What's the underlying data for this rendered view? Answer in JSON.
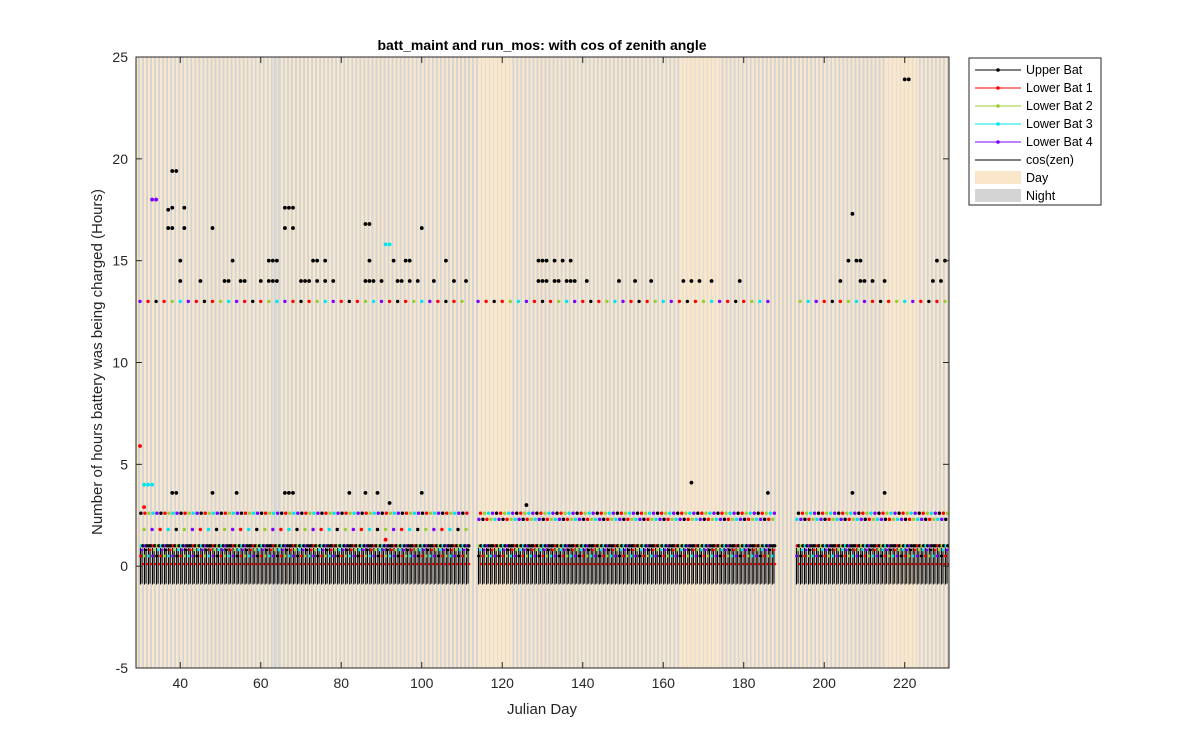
{
  "chart_data": {
    "type": "scatter",
    "title": "batt_maint and run_mos: with cos of zenith angle",
    "xlabel": "Julian Day",
    "ylabel": "Number of hours battery was being charged (Hours)",
    "xlim": [
      29,
      231
    ],
    "ylim": [
      -5,
      25
    ],
    "x_ticks": [
      40,
      60,
      80,
      100,
      120,
      140,
      160,
      180,
      200,
      220
    ],
    "y_ticks": [
      -5,
      0,
      5,
      10,
      15,
      20,
      25
    ],
    "grid": false,
    "legend_position": "outside-top-right",
    "background_bands": {
      "day_color": "#fae6c8",
      "night_color": "#d4d4d4",
      "mostly_day_day_ranges": [
        [
          114,
          122
        ],
        [
          164,
          174
        ],
        [
          215,
          223
        ]
      ],
      "mostly_night_day_ranges": [
        [
          63,
          65
        ]
      ]
    },
    "series": [
      {
        "name": "Upper Bat",
        "color": "#000000",
        "marker": "dot",
        "points": [
          [
            37,
            17.5
          ],
          [
            38,
            17.6
          ],
          [
            37,
            16.6
          ],
          [
            38,
            16.6
          ],
          [
            38,
            19.4
          ],
          [
            39,
            19.4
          ],
          [
            40,
            15
          ],
          [
            40,
            14
          ],
          [
            41,
            17.6
          ],
          [
            41,
            16.6
          ],
          [
            45,
            14
          ],
          [
            48,
            16.6
          ],
          [
            51,
            14
          ],
          [
            52,
            14
          ],
          [
            53,
            15
          ],
          [
            55,
            14
          ],
          [
            56,
            14
          ],
          [
            60,
            14
          ],
          [
            62,
            15
          ],
          [
            63,
            15
          ],
          [
            64,
            15
          ],
          [
            62,
            14
          ],
          [
            63,
            14
          ],
          [
            64,
            14
          ],
          [
            66,
            17.6
          ],
          [
            67,
            17.6
          ],
          [
            68,
            17.6
          ],
          [
            66,
            16.6
          ],
          [
            68,
            16.6
          ],
          [
            70,
            14
          ],
          [
            71,
            14
          ],
          [
            72,
            14
          ],
          [
            73,
            15
          ],
          [
            74,
            15
          ],
          [
            74,
            14
          ],
          [
            76,
            15
          ],
          [
            76,
            14
          ],
          [
            78,
            14
          ],
          [
            86,
            16.8
          ],
          [
            87,
            16.8
          ],
          [
            87,
            15
          ],
          [
            86,
            14
          ],
          [
            87,
            14
          ],
          [
            88,
            14
          ],
          [
            90,
            14
          ],
          [
            93,
            15
          ],
          [
            94,
            14
          ],
          [
            95,
            14
          ],
          [
            96,
            15
          ],
          [
            97,
            15
          ],
          [
            97,
            14
          ],
          [
            99,
            14
          ],
          [
            100,
            16.6
          ],
          [
            103,
            14
          ],
          [
            106,
            15
          ],
          [
            108,
            14
          ],
          [
            111,
            14
          ],
          [
            129,
            15
          ],
          [
            130,
            15
          ],
          [
            131,
            15
          ],
          [
            133,
            15
          ],
          [
            135,
            15
          ],
          [
            137,
            15
          ],
          [
            129,
            14
          ],
          [
            130,
            14
          ],
          [
            131,
            14
          ],
          [
            133,
            14
          ],
          [
            134,
            14
          ],
          [
            136,
            14
          ],
          [
            137,
            14
          ],
          [
            138,
            14
          ],
          [
            141,
            14
          ],
          [
            149,
            14
          ],
          [
            153,
            14
          ],
          [
            157,
            14
          ],
          [
            165,
            14
          ],
          [
            167,
            14
          ],
          [
            169,
            14
          ],
          [
            172,
            14
          ],
          [
            179,
            14
          ],
          [
            204,
            14
          ],
          [
            206,
            15
          ],
          [
            207,
            17.3
          ],
          [
            208,
            15
          ],
          [
            209,
            14
          ],
          [
            209,
            15
          ],
          [
            210,
            14
          ],
          [
            212,
            14
          ],
          [
            215,
            14
          ],
          [
            220,
            23.9
          ],
          [
            221,
            23.9
          ],
          [
            227,
            14
          ],
          [
            228,
            15
          ],
          [
            229,
            14
          ],
          [
            230,
            15
          ],
          [
            38,
            3.6
          ],
          [
            39,
            3.6
          ],
          [
            48,
            3.6
          ],
          [
            54,
            3.6
          ],
          [
            66,
            3.6
          ],
          [
            67,
            3.6
          ],
          [
            68,
            3.6
          ],
          [
            82,
            3.6
          ],
          [
            86,
            3.6
          ],
          [
            89,
            3.6
          ],
          [
            92,
            3.1
          ],
          [
            100,
            3.6
          ],
          [
            126,
            3
          ],
          [
            167,
            4.1
          ],
          [
            186,
            3.6
          ],
          [
            207,
            3.6
          ],
          [
            215,
            3.6
          ]
        ]
      },
      {
        "name": "Lower Bat 1",
        "color": "#ff0000",
        "marker": "dot",
        "points": [
          [
            30,
            5.9
          ],
          [
            31,
            2.9
          ],
          [
            91,
            1.3
          ]
        ]
      },
      {
        "name": "Lower Bat 2",
        "color": "#9acd32",
        "marker": "dot",
        "points": []
      },
      {
        "name": "Lower Bat 3",
        "color": "#00e5ee",
        "marker": "dot",
        "points": [
          [
            31,
            4
          ],
          [
            32,
            4
          ],
          [
            33,
            4
          ],
          [
            91,
            15.8
          ],
          [
            92,
            15.8
          ]
        ]
      },
      {
        "name": "Lower Bat 4",
        "color": "#7b00ff",
        "marker": "dot",
        "points": [
          [
            33,
            18
          ],
          [
            34,
            18
          ]
        ]
      },
      {
        "name": "cos(zen)",
        "color": "#000000",
        "marker": "line",
        "points": []
      }
    ],
    "dense_levels": {
      "x_range": [
        30,
        230
      ],
      "level_13": 13,
      "level_13_color_cycle": [
        "#ff0000",
        "#9acd32",
        "#00e5ee",
        "#7b00ff",
        "#ff0000",
        "#000000"
      ],
      "level_2_6_first_half": 2.6,
      "level_2_3_second_half": 2.3,
      "level_1_8_first_half": 1.8,
      "level_1": 1.0,
      "level_0_8": 0.8,
      "level_0_5": 0.5,
      "cos_zen_min": -0.9,
      "cos_zen_max": 0.9,
      "gap_day_ranges": [
        [
          112,
          113
        ],
        [
          188,
          192
        ]
      ]
    }
  },
  "legend": {
    "items": [
      {
        "label": "Upper Bat",
        "color": "#000000",
        "kind": "line-marker"
      },
      {
        "label": "Lower Bat 1",
        "color": "#ff0000",
        "kind": "line-marker"
      },
      {
        "label": "Lower Bat 2",
        "color": "#9acd32",
        "kind": "line-marker"
      },
      {
        "label": "Lower Bat 3",
        "color": "#00e5ee",
        "kind": "line-marker"
      },
      {
        "label": "Lower Bat 4",
        "color": "#7b00ff",
        "kind": "line-marker"
      },
      {
        "label": "cos(zen)",
        "color": "#000000",
        "kind": "line"
      },
      {
        "label": "Day",
        "color": "#fae6c8",
        "kind": "patch"
      },
      {
        "label": "Night",
        "color": "#d4d4d4",
        "kind": "patch"
      }
    ]
  }
}
